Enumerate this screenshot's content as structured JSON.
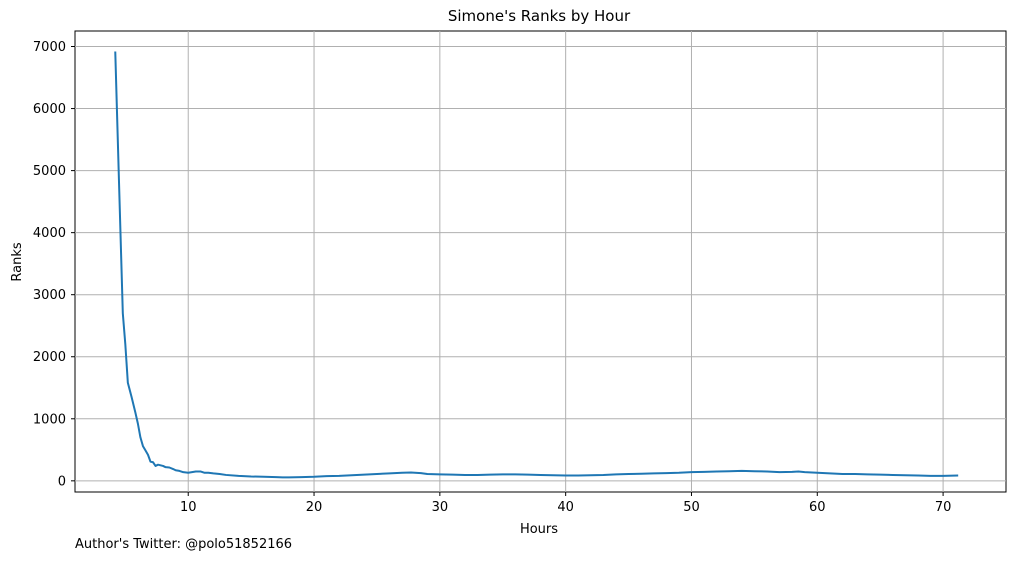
{
  "chart_data": {
    "type": "line",
    "title": "Simone's Ranks by Hour",
    "xlabel": "Hours",
    "ylabel": "Ranks",
    "xlim": [
      1.0,
      75.0
    ],
    "ylim": [
      -180,
      7250
    ],
    "xticks": [
      10,
      20,
      30,
      40,
      50,
      60,
      70
    ],
    "yticks": [
      0,
      1000,
      2000,
      3000,
      4000,
      5000,
      6000,
      7000
    ],
    "grid": true,
    "line_color": "#1f77b4",
    "series": [
      {
        "x": [
          4.2,
          4.5,
          4.8,
          5.0,
          5.2,
          5.5,
          5.8,
          6.0,
          6.2,
          6.4,
          6.6,
          6.8,
          7.0,
          7.2,
          7.4,
          7.6,
          7.8,
          8.0,
          8.2,
          8.5,
          8.8,
          9.0,
          9.3,
          9.6,
          10.0,
          10.3,
          10.6,
          11.0,
          11.3,
          11.6,
          12.0,
          12.5,
          13.0,
          14.0,
          15.0,
          16.0,
          17.0,
          17.5,
          18.0,
          19.0,
          20.0,
          21.0,
          22.0,
          23.0,
          24.0,
          25.0,
          26.0,
          27.0,
          27.7,
          28.5,
          29.0,
          30.0,
          31.0,
          32.0,
          33.0,
          34.0,
          35.0,
          36.0,
          37.0,
          38.0,
          39.0,
          40.0,
          41.0,
          42.0,
          43.0,
          44.0,
          45.0,
          46.0,
          47.0,
          48.0,
          49.0,
          50.0,
          51.0,
          52.0,
          53.0,
          54.0,
          55.0,
          56.0,
          57.0,
          58.0,
          58.5,
          59.0,
          60.0,
          61.0,
          62.0,
          63.0,
          64.0,
          65.0,
          66.0,
          67.0,
          68.0,
          69.0,
          70.0,
          71.2
        ],
        "values": [
          6920,
          4800,
          2700,
          2200,
          1580,
          1350,
          1100,
          920,
          700,
          560,
          490,
          420,
          310,
          300,
          240,
          260,
          250,
          240,
          220,
          215,
          190,
          170,
          160,
          140,
          130,
          140,
          150,
          150,
          130,
          130,
          120,
          110,
          95,
          80,
          70,
          65,
          60,
          55,
          55,
          60,
          65,
          75,
          80,
          90,
          100,
          110,
          120,
          130,
          135,
          125,
          110,
          105,
          100,
          95,
          95,
          100,
          105,
          105,
          100,
          95,
          90,
          85,
          85,
          90,
          95,
          105,
          110,
          115,
          120,
          125,
          130,
          140,
          145,
          150,
          155,
          160,
          155,
          150,
          140,
          145,
          150,
          140,
          130,
          120,
          110,
          110,
          105,
          100,
          95,
          90,
          85,
          80,
          80,
          85
        ]
      }
    ]
  },
  "footnote": "Author's Twitter: @polo51852166"
}
